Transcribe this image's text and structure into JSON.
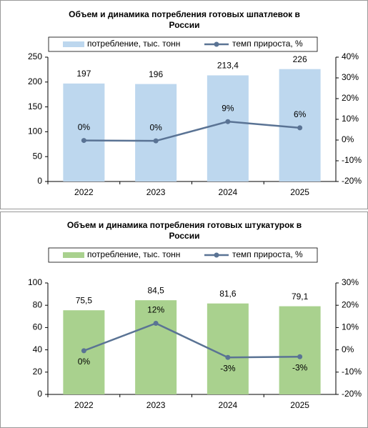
{
  "chart_data": [
    {
      "type": "bar-line",
      "title": "Объем и динамика потребления готовых шпатлевок в России",
      "categories": [
        "2022",
        "2023",
        "2024",
        "2025"
      ],
      "series": [
        {
          "name": "потребление, тыс. тонн",
          "color": "#bdd7ee",
          "values": [
            197,
            196,
            213.4,
            226
          ],
          "value_labels": [
            "197",
            "196",
            "213,4",
            "226"
          ]
        },
        {
          "name": "темп прироста, %",
          "color": "#5a7394",
          "axis": "y2",
          "values": [
            -0.2,
            -0.4,
            8.9,
            5.9
          ],
          "value_labels": [
            "0%",
            "0%",
            "9%",
            "6%"
          ]
        }
      ],
      "ylim": [
        0,
        250
      ],
      "yticks": [
        0,
        50,
        100,
        150,
        200,
        250
      ],
      "y2lim": [
        -20,
        40
      ],
      "y2ticks": [
        {
          "value": -20,
          "label": "-20%"
        },
        {
          "value": -10,
          "label": "-10%"
        },
        {
          "value": 0,
          "label": "0%"
        },
        {
          "value": 10,
          "label": "10%"
        },
        {
          "value": 20,
          "label": "20%"
        },
        {
          "value": 30,
          "label": "30%"
        },
        {
          "value": 40,
          "label": "40%"
        }
      ]
    },
    {
      "type": "bar-line",
      "title": "Объем и динамика потребления готовых штукатурок в России",
      "categories": [
        "2022",
        "2023",
        "2024",
        "2025"
      ],
      "series": [
        {
          "name": "потребление, тыс. тонн",
          "color": "#a9d18e",
          "values": [
            75.5,
            84.5,
            81.6,
            79.1
          ],
          "value_labels": [
            "75,5",
            "84,5",
            "81,6",
            "79,1"
          ]
        },
        {
          "name": "темп прироста, %",
          "color": "#5a7394",
          "axis": "y2",
          "values": [
            -0.4,
            11.9,
            -3.4,
            -3.1
          ],
          "value_labels": [
            "0%",
            "12%",
            "-3%",
            "-3%"
          ]
        }
      ],
      "ylim": [
        0,
        100
      ],
      "yticks": [
        0,
        20,
        40,
        60,
        80,
        100
      ],
      "y2lim": [
        -20,
        30
      ],
      "y2ticks": [
        {
          "value": -20,
          "label": "-20%"
        },
        {
          "value": -10,
          "label": "-10%"
        },
        {
          "value": 0,
          "label": "0%"
        },
        {
          "value": 10,
          "label": "10%"
        },
        {
          "value": 20,
          "label": "20%"
        },
        {
          "value": 30,
          "label": "30%"
        }
      ]
    }
  ]
}
